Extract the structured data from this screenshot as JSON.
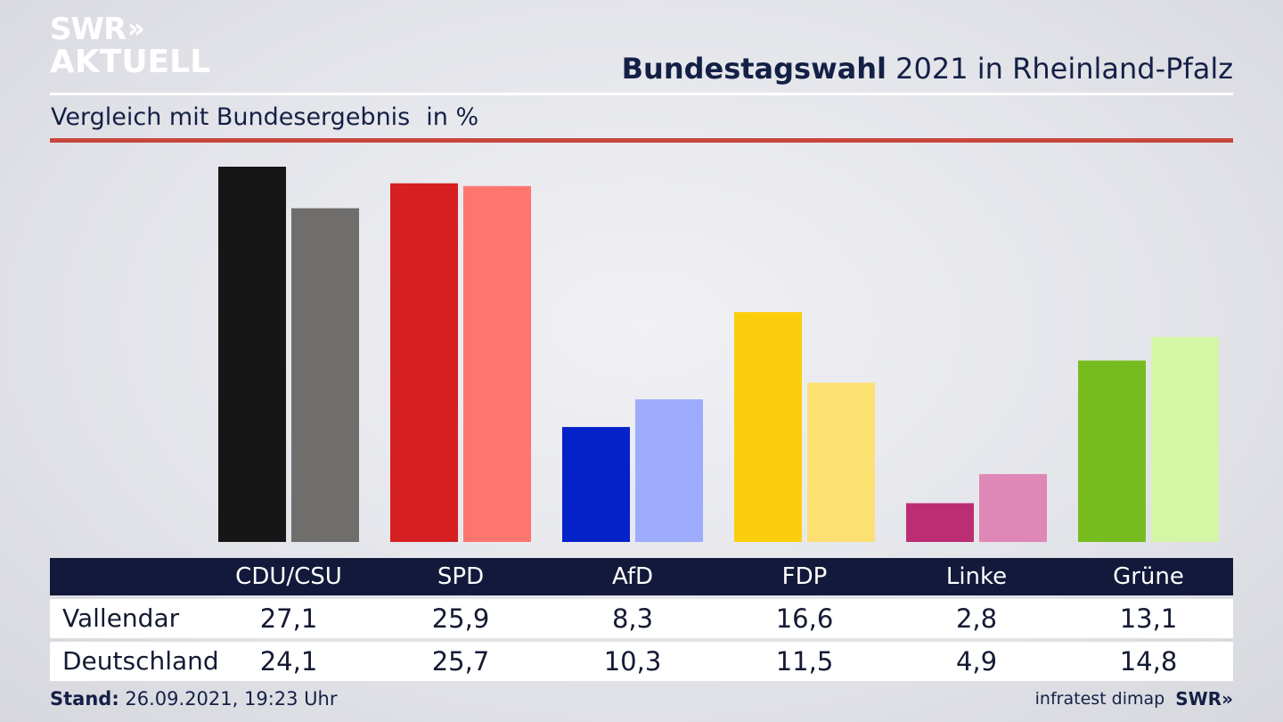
{
  "logo": {
    "line1": "SWR",
    "chevrons": "»",
    "line2": "AKTUELL"
  },
  "header": {
    "title_bold": "Bundestagswahl",
    "title_rest": " 2021 in Rheinland-Pfalz"
  },
  "subtitle": {
    "text": "Vergleich mit Bundesergebnis",
    "unit": "in %"
  },
  "table": {
    "columns": [
      "CDU/CSU",
      "SPD",
      "AfD",
      "FDP",
      "Linke",
      "Grüne"
    ],
    "rows": [
      {
        "label": "Vallendar",
        "values": [
          "27,1",
          "25,9",
          "8,3",
          "16,6",
          "2,8",
          "13,1"
        ]
      },
      {
        "label": "Deutschland",
        "values": [
          "24,1",
          "25,7",
          "10,3",
          "11,5",
          "4,9",
          "14,8"
        ]
      }
    ]
  },
  "footer": {
    "stand_label": "Stand:",
    "stand_value": " 26.09.2021, 19:23 Uhr",
    "source": "infratest dimap",
    "brand": "SWR»"
  },
  "colors": {
    "header_band": "#12193a",
    "accent_line": "#c8463c"
  },
  "chart_data": {
    "type": "bar",
    "categories": [
      "CDU/CSU",
      "SPD",
      "AfD",
      "FDP",
      "Linke",
      "Grüne"
    ],
    "series": [
      {
        "name": "Vallendar",
        "values": [
          27.1,
          25.9,
          8.3,
          16.6,
          2.8,
          13.1
        ],
        "colors": [
          "#161616",
          "#d51f20",
          "#0522c9",
          "#fccd0c",
          "#bc2e74",
          "#77bc1f"
        ]
      },
      {
        "name": "Deutschland",
        "values": [
          24.1,
          25.7,
          10.3,
          11.5,
          4.9,
          14.8
        ],
        "colors": [
          "#706e6c",
          "#fe746f",
          "#9eacfd",
          "#fde072",
          "#df87b7",
          "#d4f7a6"
        ]
      }
    ],
    "ylim": [
      0,
      27.1
    ],
    "grid": false,
    "legend": "table-below"
  }
}
